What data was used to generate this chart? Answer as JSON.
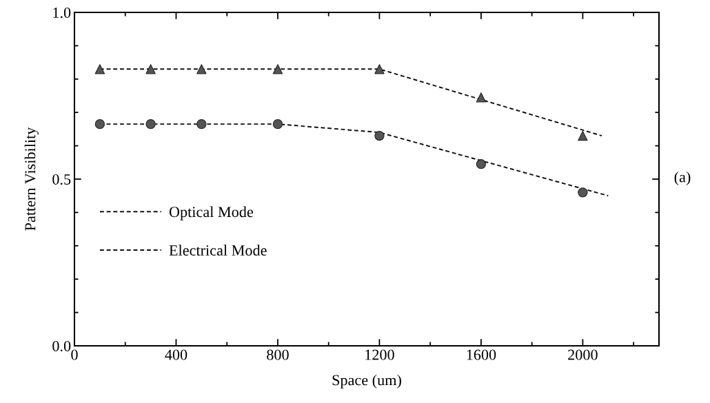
{
  "chart_data": {
    "type": "scatter",
    "xlabel": "Space (um)",
    "ylabel": "Pattern Visibility",
    "annotations": [
      "(a)"
    ],
    "xlim": [
      0,
      2300
    ],
    "ylim": [
      0,
      1.0
    ],
    "xticks": [
      0,
      {
        "value": 200,
        "label": null
      },
      400,
      {
        "value": 600,
        "label": null
      },
      800,
      {
        "value": 1000,
        "label": null
      },
      1200,
      {
        "value": 1400,
        "label": null
      },
      1600,
      {
        "value": 1800,
        "label": null
      },
      2000,
      {
        "value": 2200,
        "label": null
      }
    ],
    "yticks": [
      {
        "value": 0,
        "label": "0.0"
      },
      {
        "value": 0.1,
        "label": null
      },
      {
        "value": 0.2,
        "label": null
      },
      {
        "value": 0.3,
        "label": null
      },
      {
        "value": 0.4,
        "label": null
      },
      0.5,
      {
        "value": 0.6,
        "label": null
      },
      {
        "value": 0.7,
        "label": null
      },
      {
        "value": 0.8,
        "label": null
      },
      {
        "value": 0.9,
        "label": null
      },
      {
        "value": 1.0,
        "label": "1.0"
      }
    ],
    "grid": false,
    "legend": "bottom left",
    "series": [
      {
        "marker": "triangle",
        "color": "#555555",
        "x": [
          100,
          300,
          500,
          800,
          1200,
          1600,
          2000
        ],
        "values": [
          0.83,
          0.83,
          0.83,
          0.83,
          0.83,
          0.745,
          0.63
        ]
      },
      {
        "marker": "circle",
        "color": "#555555",
        "x": [
          100,
          300,
          500,
          800,
          1200,
          1600,
          2000
        ],
        "values": [
          0.665,
          0.665,
          0.665,
          0.665,
          0.63,
          0.545,
          0.46
        ]
      },
      {
        "type": "line",
        "name": "Optical Mode",
        "line_style": "dashed",
        "color": "#111111",
        "x": [
          100,
          1200,
          2075
        ],
        "values": [
          0.83,
          0.83,
          0.63
        ]
      },
      {
        "type": "line",
        "name": "Electrical Mode",
        "line_style": "dashed",
        "color": "#111111",
        "x": [
          100,
          800,
          1200,
          2100
        ],
        "values": [
          0.665,
          0.665,
          0.64,
          0.45
        ]
      }
    ]
  }
}
